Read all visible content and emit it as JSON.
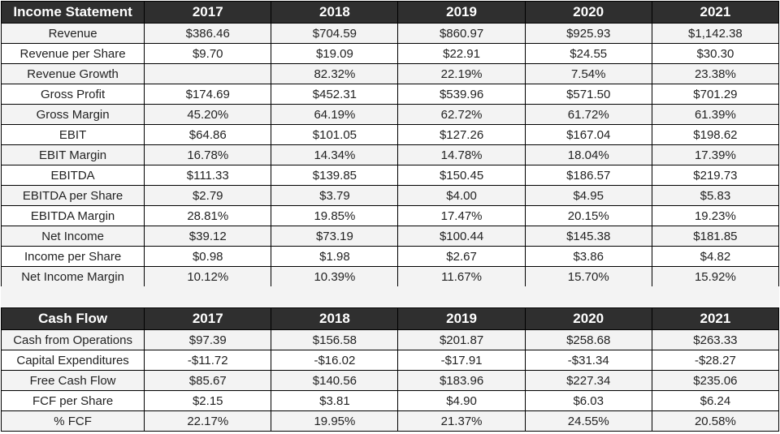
{
  "income": {
    "title": "Income Statement",
    "years": [
      "2017",
      "2018",
      "2019",
      "2020",
      "2021"
    ],
    "rows": [
      {
        "label": "Revenue",
        "values": [
          "$386.46",
          "$704.59",
          "$860.97",
          "$925.93",
          "$1,142.38"
        ]
      },
      {
        "label": "Revenue per Share",
        "values": [
          "$9.70",
          "$19.09",
          "$22.91",
          "$24.55",
          "$30.30"
        ]
      },
      {
        "label": "Revenue Growth",
        "values": [
          "",
          "82.32%",
          "22.19%",
          "7.54%",
          "23.38%"
        ]
      },
      {
        "label": "Gross Profit",
        "values": [
          "$174.69",
          "$452.31",
          "$539.96",
          "$571.50",
          "$701.29"
        ]
      },
      {
        "label": "Gross Margin",
        "values": [
          "45.20%",
          "64.19%",
          "62.72%",
          "61.72%",
          "61.39%"
        ]
      },
      {
        "label": "EBIT",
        "values": [
          "$64.86",
          "$101.05",
          "$127.26",
          "$167.04",
          "$198.62"
        ]
      },
      {
        "label": "EBIT Margin",
        "values": [
          "16.78%",
          "14.34%",
          "14.78%",
          "18.04%",
          "17.39%"
        ]
      },
      {
        "label": "EBITDA",
        "values": [
          "$111.33",
          "$139.85",
          "$150.45",
          "$186.57",
          "$219.73"
        ]
      },
      {
        "label": "EBITDA per Share",
        "values": [
          "$2.79",
          "$3.79",
          "$4.00",
          "$4.95",
          "$5.83"
        ]
      },
      {
        "label": "EBITDA Margin",
        "values": [
          "28.81%",
          "19.85%",
          "17.47%",
          "20.15%",
          "19.23%"
        ]
      },
      {
        "label": "Net Income",
        "values": [
          "$39.12",
          "$73.19",
          "$100.44",
          "$145.38",
          "$181.85"
        ]
      },
      {
        "label": "Income per Share",
        "values": [
          "$0.98",
          "$1.98",
          "$2.67",
          "$3.86",
          "$4.82"
        ]
      },
      {
        "label": "Net Income Margin",
        "values": [
          "10.12%",
          "10.39%",
          "11.67%",
          "15.70%",
          "15.92%"
        ]
      }
    ]
  },
  "cashflow": {
    "title": "Cash Flow",
    "years": [
      "2017",
      "2018",
      "2019",
      "2020",
      "2021"
    ],
    "rows": [
      {
        "label": "Cash from Operations",
        "values": [
          "$97.39",
          "$156.58",
          "$201.87",
          "$258.68",
          "$263.33"
        ]
      },
      {
        "label": "Capital Expenditures",
        "values": [
          "-$11.72",
          "-$16.02",
          "-$17.91",
          "-$31.34",
          "-$28.27"
        ]
      },
      {
        "label": "Free Cash Flow",
        "values": [
          "$85.67",
          "$140.56",
          "$183.96",
          "$227.34",
          "$235.06"
        ]
      },
      {
        "label": "FCF per Share",
        "values": [
          "$2.15",
          "$3.81",
          "$4.90",
          "$6.03",
          "$6.24"
        ]
      },
      {
        "label": "% FCF",
        "values": [
          "22.17%",
          "19.95%",
          "21.37%",
          "24.55%",
          "20.58%"
        ]
      }
    ]
  },
  "colors": {
    "header_bg": "#2f2f2f",
    "header_text": "#ffffff",
    "shaded_row": "#f3f3f3",
    "border": "#000000"
  }
}
